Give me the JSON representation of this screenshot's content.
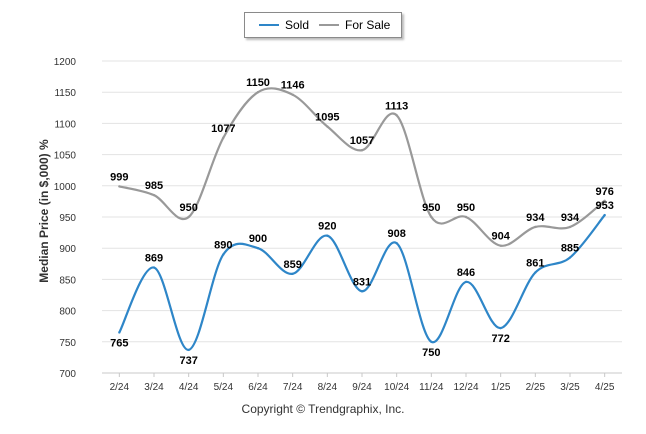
{
  "chart_data": {
    "type": "line",
    "categories": [
      "2/24",
      "3/24",
      "4/24",
      "5/24",
      "6/24",
      "7/24",
      "8/24",
      "9/24",
      "10/24",
      "11/24",
      "12/24",
      "1/25",
      "2/25",
      "3/25",
      "4/25"
    ],
    "series": [
      {
        "name": "Sold",
        "color": "#2e86c8",
        "values": [
          765,
          869,
          737,
          890,
          900,
          859,
          920,
          831,
          908,
          750,
          846,
          772,
          861,
          885,
          953
        ]
      },
      {
        "name": "For Sale",
        "color": "#999999",
        "values": [
          999,
          985,
          950,
          1077,
          1150,
          1146,
          1095,
          1057,
          1113,
          950,
          950,
          904,
          934,
          934,
          976
        ]
      }
    ],
    "ylabel": "Median Price (in $,000) %",
    "ylim": [
      700,
      1200
    ],
    "yticks": [
      700,
      750,
      800,
      850,
      900,
      950,
      1000,
      1050,
      1100,
      1150,
      1200
    ],
    "grid": true,
    "legend_position": "top-center"
  },
  "footer": {
    "copyright": "Copyright © Trendgraphix, Inc."
  }
}
